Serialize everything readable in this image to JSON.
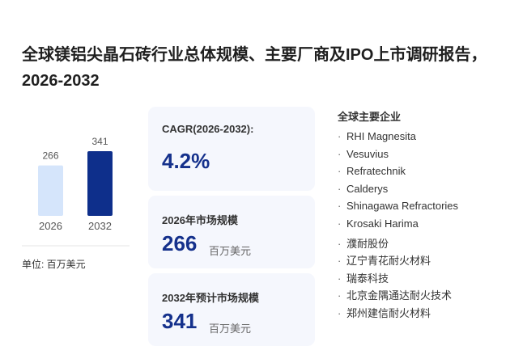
{
  "title": "全球镁铝尖晶石砖行业总体规模、主要厂商及IPO上市调研报告，2026-2032",
  "chart_data": {
    "type": "bar",
    "categories": [
      "2026",
      "2032"
    ],
    "values": [
      266,
      341
    ],
    "colors": [
      "#d5e5fb",
      "#0e2f8b"
    ]
  },
  "unit_label": "单位: 百万美元",
  "cards": [
    {
      "label": "CAGR(2026-2032):",
      "value": "4.2%"
    },
    {
      "label": "2026年市场规模",
      "unit": "百万美元"
    },
    {
      "label": "2032年预计市场规模",
      "unit": "百万美元"
    }
  ],
  "companies": {
    "title": "全球主要企业",
    "items": [
      "RHI Magnesita",
      "Vesuvius",
      "Refratechnik",
      "Calderys",
      "Shinagawa Refractories",
      "Krosaki Harima",
      "濮耐股份",
      "辽宁青花耐火材料",
      "瑞泰科技",
      "北京金隅通达耐火技术",
      "郑州建信耐火材料"
    ]
  }
}
